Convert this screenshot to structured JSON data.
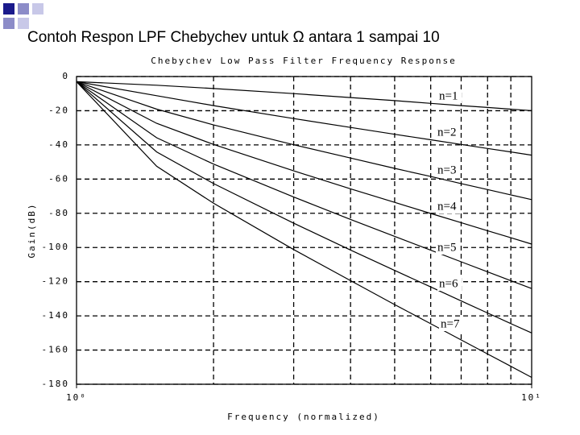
{
  "slide_title": "Contoh Respon LPF Chebychev untuk Ω antara 1 sampai 10",
  "chart_data": {
    "type": "line",
    "title": "Chebychev Low Pass Filter Frequency Response",
    "x_label": "Frequency (normalized)",
    "y_label": "Gain(dB)",
    "x_scale": "log",
    "x": [
      1,
      1.5,
      2,
      3,
      4,
      5,
      6,
      7,
      8,
      9,
      10
    ],
    "xlim": [
      1,
      10
    ],
    "xticks": [
      {
        "value": 1,
        "label": "10⁰"
      },
      {
        "value": 10,
        "label": "10¹"
      }
    ],
    "x_grid_lines": [
      2,
      3,
      4,
      5,
      6,
      7,
      8,
      9
    ],
    "ylim": [
      -180,
      0
    ],
    "yticks": [
      0,
      -20,
      -40,
      -60,
      -80,
      -100,
      -120,
      -140,
      -160,
      -180
    ],
    "grid": true,
    "series": [
      {
        "name": "n=1",
        "color": "#000000",
        "values": [
          -3.0,
          -5.1,
          -7.0,
          -10.0,
          -12.3,
          -14.1,
          -15.7,
          -17.0,
          -18.1,
          -19.1,
          -20.0
        ]
      },
      {
        "name": "n=2",
        "color": "#000000",
        "values": [
          -3.0,
          -11.2,
          -17.0,
          -24.6,
          -29.8,
          -33.8,
          -37.0,
          -39.7,
          -42.1,
          -44.1,
          -46.0
        ]
      },
      {
        "name": "n=3",
        "color": "#000000",
        "values": [
          -3.0,
          -19.1,
          -28.3,
          -39.9,
          -47.7,
          -53.7,
          -58.5,
          -62.6,
          -66.1,
          -69.2,
          -72.0
        ]
      },
      {
        "name": "n=4",
        "color": "#000000",
        "values": [
          -3.0,
          -27.4,
          -39.7,
          -55.2,
          -65.7,
          -73.6,
          -80.1,
          -85.5,
          -90.2,
          -94.3,
          -98.0
        ]
      },
      {
        "name": "n=5",
        "color": "#000000",
        "values": [
          -3.0,
          -35.8,
          -51.2,
          -70.5,
          -83.6,
          -93.5,
          -101.6,
          -108.4,
          -114.2,
          -119.4,
          -124.0
        ]
      },
      {
        "name": "n=6",
        "color": "#000000",
        "values": [
          -3.0,
          -44.1,
          -62.6,
          -85.8,
          -101.5,
          -113.4,
          -123.1,
          -131.3,
          -138.3,
          -144.5,
          -150.0
        ]
      },
      {
        "name": "n=7",
        "color": "#000000",
        "values": [
          -3.0,
          -52.5,
          -74.1,
          -101.2,
          -119.4,
          -133.4,
          -144.6,
          -154.1,
          -162.3,
          -169.5,
          -176.0
        ]
      }
    ]
  }
}
